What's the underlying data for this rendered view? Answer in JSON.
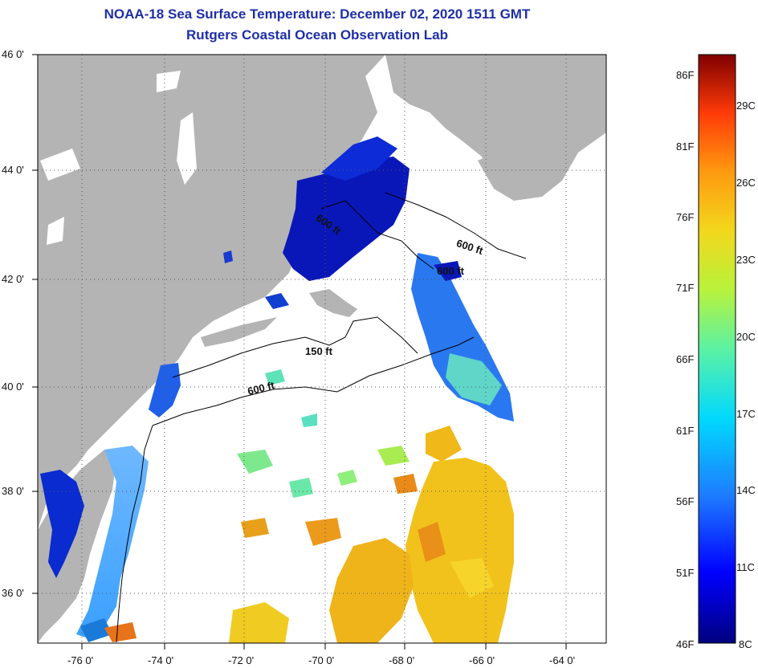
{
  "header": {
    "title": "NOAA-18 Sea Surface Temperature:  December 02, 2020 1511 GMT",
    "subtitle": "Rutgers Coastal Ocean Observation Lab"
  },
  "map": {
    "lat_labels": [
      "46 0'",
      "44 0'",
      "42 0'",
      "40 0'",
      "38 0'",
      "36 0'"
    ],
    "lon_labels": [
      "-76 0'",
      "-74 0'",
      "-72 0'",
      "-70 0'",
      "-68 0'",
      "-66 0'",
      "-64 0'"
    ],
    "isobath_labels": [
      "600 ft",
      "600 ft",
      "600 ft",
      "150 ft",
      "600 ft"
    ]
  },
  "colorbar": {
    "fahrenheit": [
      "86F",
      "81F",
      "76F",
      "71F",
      "66F",
      "61F",
      "56F",
      "51F",
      "46F"
    ],
    "celsius": [
      "29C",
      "26C",
      "23C",
      "20C",
      "17C",
      "14C",
      "11C",
      "8C"
    ]
  },
  "colors": {
    "title": "#1f2fa6",
    "land": "#b4b4b4",
    "cold": "#0a17b8",
    "warm": "#f0b818"
  }
}
